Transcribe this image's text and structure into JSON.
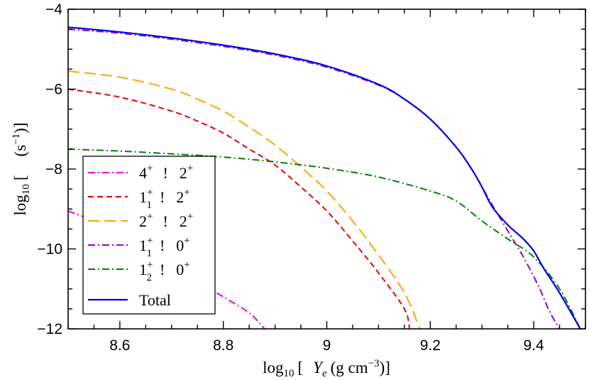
{
  "chart_data": {
    "type": "line",
    "title": "",
    "xlabel": "log10 [  Ye (g cm^-3)]",
    "ylabel": "log10 [    (s^-1)]",
    "xlim": [
      8.5,
      9.5
    ],
    "ylim": [
      -12,
      -4
    ],
    "xticks": [
      8.6,
      8.8,
      9.0,
      9.2,
      9.4
    ],
    "xtick_labels": [
      "8.6",
      "8.8",
      "9",
      "9.2",
      "9.4"
    ],
    "yticks": [
      -12,
      -10,
      -8,
      -6,
      -4
    ],
    "ytick_labels": [
      "−12",
      "−10",
      "−8",
      "−6",
      "−4"
    ],
    "grid": false,
    "legend_position": "lower-left",
    "series": [
      {
        "name": "4+ ! 2+",
        "color": "#e600e6",
        "dash": "dashdot",
        "x": [
          8.5,
          8.55,
          8.6,
          8.65,
          8.7,
          8.75,
          8.8,
          8.85,
          8.88
        ],
        "y": [
          -9.05,
          -9.3,
          -9.6,
          -9.95,
          -10.35,
          -10.8,
          -11.2,
          -11.6,
          -12.0
        ]
      },
      {
        "name": "1+1 ! 2+",
        "color": "#e60000",
        "dash": "dash",
        "x": [
          8.5,
          8.6,
          8.7,
          8.75,
          8.8,
          8.85,
          8.9,
          8.95,
          9.0,
          9.05,
          9.1,
          9.15,
          9.16
        ],
        "y": [
          -6.0,
          -6.2,
          -6.55,
          -6.8,
          -7.1,
          -7.5,
          -7.9,
          -8.45,
          -9.05,
          -9.8,
          -10.6,
          -11.5,
          -12.0
        ]
      },
      {
        "name": "2+ ! 2+",
        "color": "#ffa500",
        "dash": "longdash",
        "x": [
          8.5,
          8.6,
          8.7,
          8.75,
          8.8,
          8.85,
          8.9,
          8.95,
          9.0,
          9.05,
          9.1,
          9.15,
          9.18
        ],
        "y": [
          -5.55,
          -5.7,
          -6.0,
          -6.25,
          -6.55,
          -6.95,
          -7.4,
          -7.95,
          -8.55,
          -9.3,
          -10.15,
          -11.1,
          -12.0
        ]
      },
      {
        "name": "1+1 ! 0+",
        "color": "#9400d3",
        "dash": "dashdot",
        "x": [
          8.5,
          8.6,
          8.7,
          8.8,
          8.9,
          9.0,
          9.1,
          9.15,
          9.2,
          9.25,
          9.28,
          9.3,
          9.32,
          9.35,
          9.38,
          9.41,
          9.43,
          9.45
        ],
        "y": [
          -4.5,
          -4.6,
          -4.75,
          -4.93,
          -5.15,
          -5.45,
          -5.9,
          -6.25,
          -6.75,
          -7.45,
          -8.0,
          -8.45,
          -8.9,
          -9.55,
          -10.2,
          -10.95,
          -11.55,
          -12.0
        ]
      },
      {
        "name": "1+2 ! 0+",
        "color": "#008000",
        "dash": "dashdot",
        "x": [
          8.5,
          8.6,
          8.7,
          8.8,
          8.9,
          9.0,
          9.1,
          9.2,
          9.25,
          9.3,
          9.35,
          9.4,
          9.45,
          9.49
        ],
        "y": [
          -7.5,
          -7.55,
          -7.62,
          -7.7,
          -7.82,
          -7.98,
          -8.2,
          -8.55,
          -8.8,
          -9.3,
          -9.75,
          -10.2,
          -11.0,
          -12.0
        ]
      },
      {
        "name": "Total",
        "color": "#0000e6",
        "dash": "solid",
        "x": [
          8.5,
          8.6,
          8.7,
          8.8,
          8.9,
          9.0,
          9.1,
          9.15,
          9.2,
          9.25,
          9.28,
          9.3,
          9.32,
          9.35,
          9.38,
          9.4,
          9.42,
          9.45,
          9.49
        ],
        "y": [
          -4.45,
          -4.57,
          -4.72,
          -4.9,
          -5.12,
          -5.42,
          -5.88,
          -6.25,
          -6.75,
          -7.45,
          -8.0,
          -8.45,
          -8.95,
          -9.4,
          -9.75,
          -10.05,
          -10.5,
          -11.1,
          -12.0
        ]
      }
    ],
    "legend": [
      {
        "a": "4",
        "a_sup": "+",
        "a_sub": "",
        "b": "2",
        "b_sup": "+"
      },
      {
        "a": "1",
        "a_sup": "+",
        "a_sub": "1",
        "b": "2",
        "b_sup": "+"
      },
      {
        "a": "2",
        "a_sup": "+",
        "a_sub": "",
        "b": "2",
        "b_sup": "+"
      },
      {
        "a": "1",
        "a_sup": "+",
        "a_sub": "1",
        "b": "0",
        "b_sup": "+"
      },
      {
        "a": "1",
        "a_sup": "+",
        "a_sub": "2",
        "b": "0",
        "b_sup": "+"
      },
      {
        "total": "Total"
      }
    ],
    "arrow_glyph": "!"
  },
  "axis_text": {
    "x_prefix": "log",
    "x_prefix_sub": "10",
    "x_open": "[",
    "x_var": "Y",
    "x_var_sub": "e",
    "x_units": "(g cm",
    "x_units_sup": "−3",
    "x_close": ")]",
    "y_prefix": "log",
    "y_prefix_sub": "10",
    "y_open": "[",
    "y_units": "(s",
    "y_units_sup": "−1",
    "y_close": ")]"
  }
}
